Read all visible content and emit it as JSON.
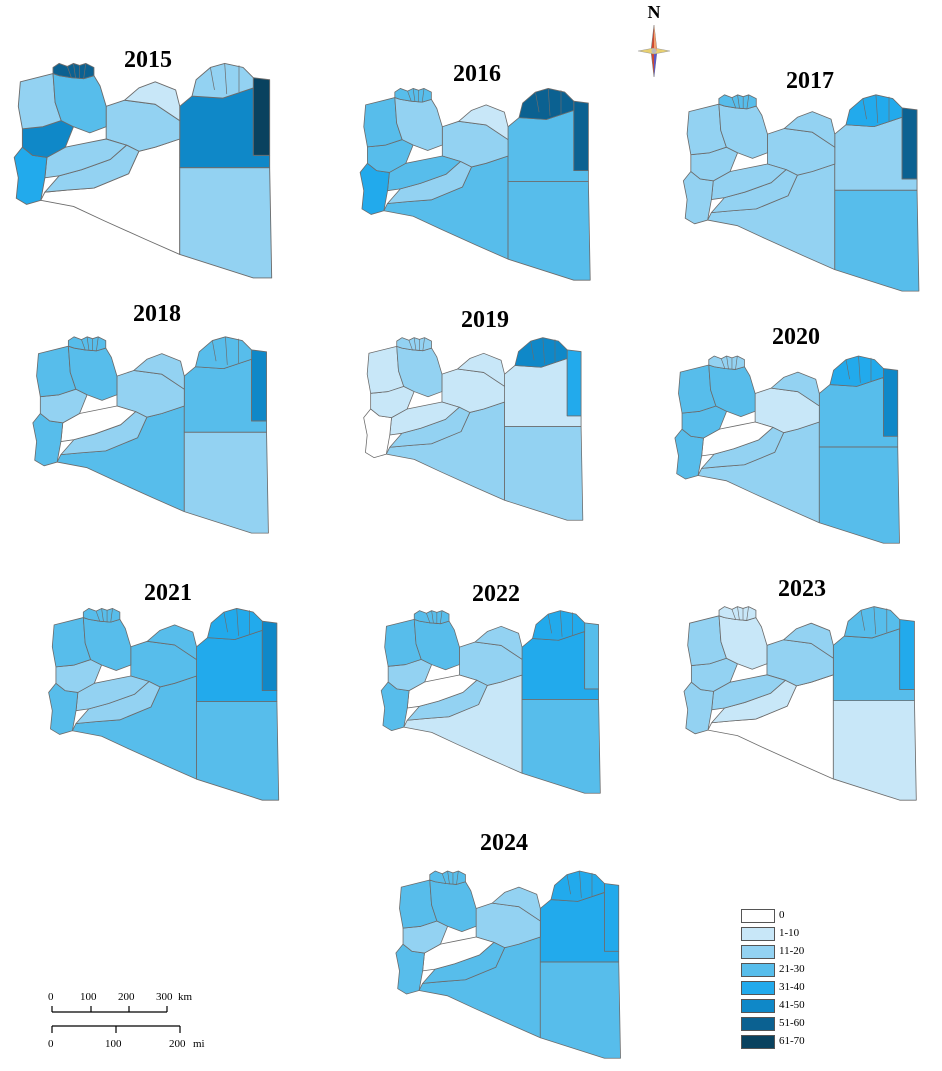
{
  "classes": [
    {
      "label": "0",
      "color": "#ffffff"
    },
    {
      "label": "1-10",
      "color": "#c8e7f8"
    },
    {
      "label": "11-20",
      "color": "#93d2f2"
    },
    {
      "label": "21-30",
      "color": "#57bdeb"
    },
    {
      "label": "31-40",
      "color": "#22aaec"
    },
    {
      "label": "41-50",
      "color": "#0f88c8"
    },
    {
      "label": "51-60",
      "color": "#0b6191"
    },
    {
      "label": "61-70",
      "color": "#09425f"
    }
  ],
  "compass": {
    "label": "N"
  },
  "scale_bar": {
    "km_ticks": [
      "0",
      "100",
      "200",
      "300"
    ],
    "km_unit": "km",
    "mi_ticks": [
      "0",
      "100",
      "200"
    ],
    "mi_unit": "mi"
  },
  "maps": [
    {
      "year": "2015",
      "regions": {
        "nwcoast": 6,
        "nw": 3,
        "w": 2,
        "wc": 5,
        "sw": 4,
        "wmid": 2,
        "msouth": 2,
        "c": 2,
        "cm": 1,
        "sw_big": 0,
        "ne": 2,
        "neast": 7,
        "e": 5,
        "se": 2
      }
    },
    {
      "year": "2016",
      "regions": {
        "nwcoast": 3,
        "nw": 2,
        "w": 3,
        "wc": 3,
        "sw": 4,
        "wmid": 3,
        "msouth": 2,
        "c": 2,
        "cm": 1,
        "sw_big": 3,
        "ne": 6,
        "neast": 6,
        "e": 3,
        "se": 3
      }
    },
    {
      "year": "2017",
      "regions": {
        "nwcoast": 3,
        "nw": 2,
        "w": 2,
        "wc": 2,
        "sw": 2,
        "wmid": 2,
        "msouth": 2,
        "c": 2,
        "cm": 2,
        "sw_big": 2,
        "ne": 4,
        "neast": 6,
        "e": 2,
        "se": 3
      }
    },
    {
      "year": "2018",
      "regions": {
        "nwcoast": 3,
        "nw": 3,
        "w": 3,
        "wc": 2,
        "sw": 3,
        "wmid": 0,
        "msouth": 2,
        "c": 2,
        "cm": 2,
        "sw_big": 3,
        "ne": 3,
        "neast": 5,
        "e": 3,
        "se": 2
      }
    },
    {
      "year": "2019",
      "regions": {
        "nwcoast": 2,
        "nw": 2,
        "w": 1,
        "wc": 1,
        "sw": 0,
        "wmid": 1,
        "msouth": 2,
        "c": 1,
        "cm": 1,
        "sw_big": 2,
        "ne": 5,
        "neast": 4,
        "e": 1,
        "se": 2
      }
    },
    {
      "year": "2020",
      "regions": {
        "nwcoast": 2,
        "nw": 3,
        "w": 3,
        "wc": 3,
        "sw": 3,
        "wmid": 0,
        "msouth": 2,
        "c": 1,
        "cm": 2,
        "sw_big": 2,
        "ne": 4,
        "neast": 5,
        "e": 3,
        "se": 3
      }
    },
    {
      "year": "2021",
      "regions": {
        "nwcoast": 3,
        "nw": 3,
        "w": 3,
        "wc": 2,
        "sw": 3,
        "wmid": 2,
        "msouth": 2,
        "c": 3,
        "cm": 3,
        "sw_big": 3,
        "ne": 4,
        "neast": 5,
        "e": 4,
        "se": 3
      }
    },
    {
      "year": "2022",
      "regions": {
        "nwcoast": 3,
        "nw": 3,
        "w": 3,
        "wc": 2,
        "sw": 3,
        "wmid": 0,
        "msouth": 2,
        "c": 2,
        "cm": 2,
        "sw_big": 1,
        "ne": 4,
        "neast": 3,
        "e": 4,
        "se": 3
      }
    },
    {
      "year": "2023",
      "regions": {
        "nwcoast": 1,
        "nw": 1,
        "w": 2,
        "wc": 2,
        "sw": 2,
        "wmid": 2,
        "msouth": 1,
        "c": 2,
        "cm": 2,
        "sw_big": 0,
        "ne": 3,
        "neast": 4,
        "e": 3,
        "se": 1
      }
    },
    {
      "year": "2024",
      "regions": {
        "nwcoast": 3,
        "nw": 3,
        "w": 3,
        "wc": 2,
        "sw": 3,
        "wmid": 0,
        "msouth": 3,
        "c": 2,
        "cm": 2,
        "sw_big": 3,
        "ne": 4,
        "neast": 4,
        "e": 4,
        "se": 3
      }
    }
  ]
}
